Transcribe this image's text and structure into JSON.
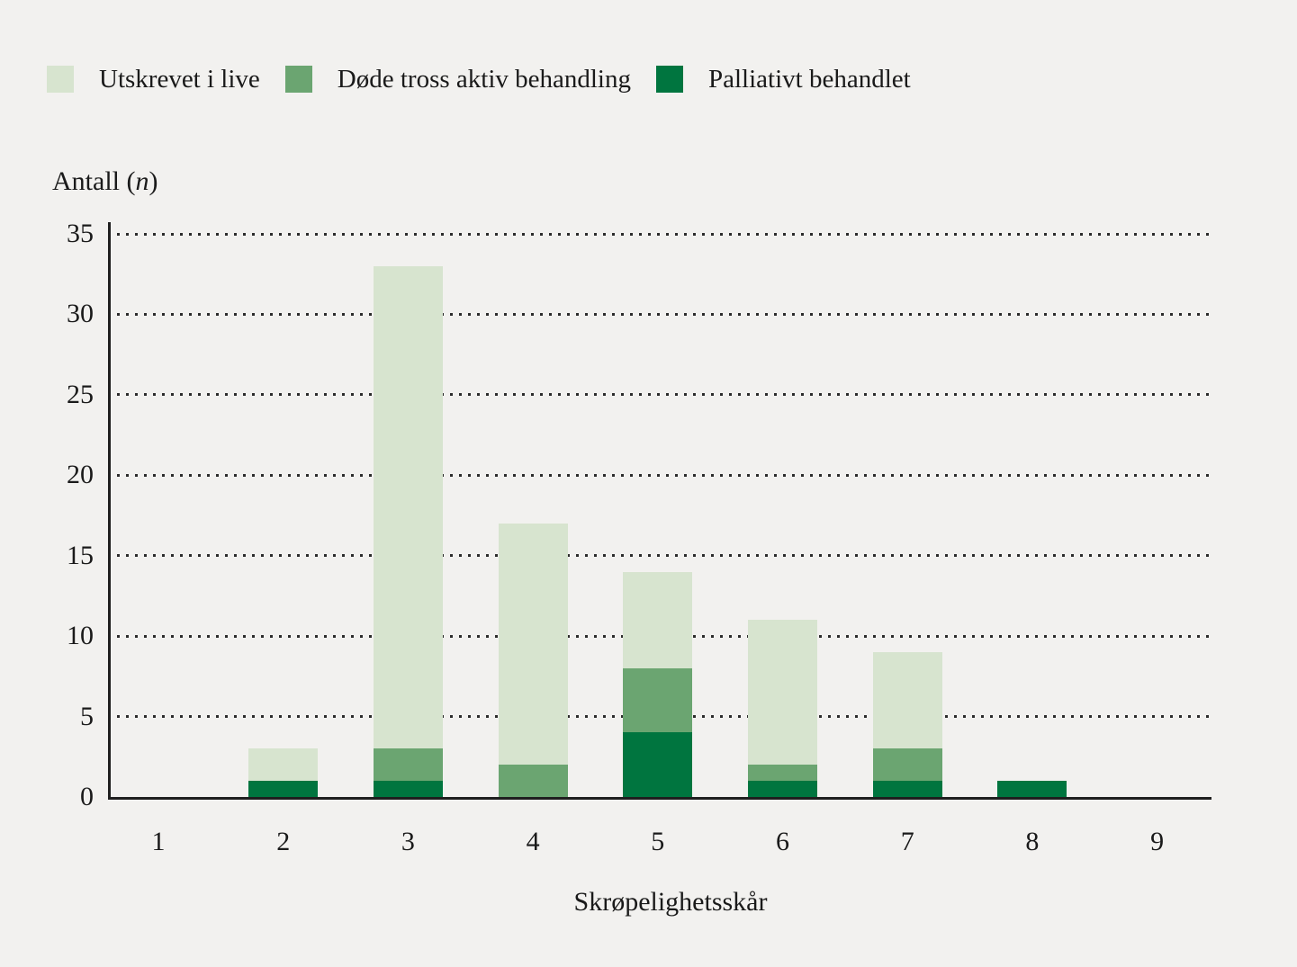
{
  "chart_data": {
    "type": "bar",
    "stacked": true,
    "categories": [
      "1",
      "2",
      "3",
      "4",
      "5",
      "6",
      "7",
      "8",
      "9"
    ],
    "series": [
      {
        "name": "Utskrevet i live",
        "color": "#d7e4cf",
        "values": [
          0,
          2,
          30,
          15,
          6,
          9,
          6,
          0,
          0
        ]
      },
      {
        "name": "Døde tross aktiv behandling",
        "color": "#6ba571",
        "values": [
          0,
          0,
          2,
          2,
          4,
          1,
          2,
          0,
          0
        ]
      },
      {
        "name": "Palliativt behandlet",
        "color": "#00753f",
        "values": [
          0,
          1,
          1,
          0,
          4,
          1,
          1,
          1,
          0
        ]
      }
    ],
    "stack_order_note": "last series is the bottom segment of each stack",
    "totals": [
      0,
      3,
      33,
      17,
      14,
      11,
      9,
      1,
      0
    ],
    "xlabel": "Skrøpelighetsskår",
    "ylabel": "Antall (n)",
    "y_axis_title": {
      "prefix": "Antall (",
      "variable": "n",
      "suffix": ")"
    },
    "ylim": [
      0,
      35
    ],
    "yticks": [
      0,
      5,
      10,
      15,
      20,
      25,
      30,
      35
    ],
    "grid": "horizontal-dotted",
    "legend_position": "top-left"
  },
  "colors": {
    "background": "#f2f1ef",
    "text": "#1a1a1a",
    "axis": "#1f1f1f"
  }
}
